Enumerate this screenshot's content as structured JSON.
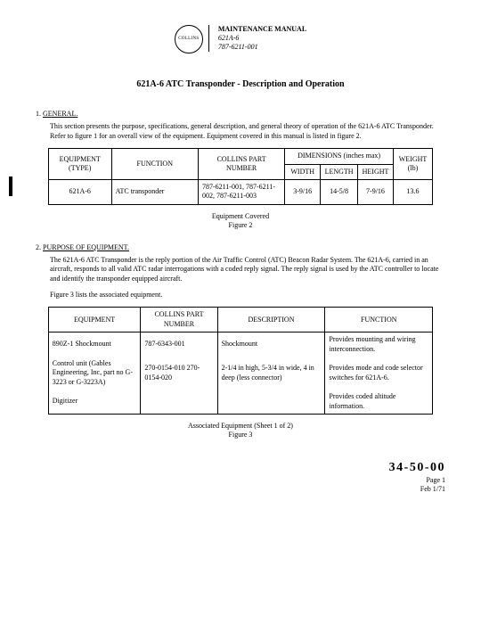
{
  "header": {
    "logo_text": "COLLINS",
    "manual": "MAINTENANCE MANUAL",
    "model": "621A-6",
    "pn": "787-6211-001"
  },
  "title": "621A-6 ATC Transponder - Description and Operation",
  "s1": {
    "num": "1.",
    "heading": "GENERAL.",
    "para": "This section presents the purpose, specifications, general description, and general theory of operation of the 621A-6 ATC Transponder. Refer to figure 1 for an overall view of the equipment. Equipment covered in this manual is listed in figure 2."
  },
  "t1": {
    "h_eqtype": "EQUIPMENT (TYPE)",
    "h_func": "FUNCTION",
    "h_partno": "COLLINS PART NUMBER",
    "h_dims": "DIMENSIONS (inches max)",
    "h_width": "WIDTH",
    "h_length": "LENGTH",
    "h_height": "HEIGHT",
    "h_weight": "WEIGHT (lb)",
    "r1_eqtype": "621A-6",
    "r1_func": "ATC transponder",
    "r1_partno": "787-6211-001, 787-6211-002, 787-6211-003",
    "r1_width": "3-9/16",
    "r1_length": "14-5/8",
    "r1_height": "7-9/16",
    "r1_weight": "13.6"
  },
  "fig2": {
    "cap1": "Equipment Covered",
    "cap2": "Figure 2"
  },
  "s2": {
    "num": "2.",
    "heading": "PURPOSE OF EQUIPMENT.",
    "para1": "The 621A-6 ATC Transponder is the reply portion of the Air Traffic Control (ATC) Beacon Radar System. The 621A-6, carried in an aircraft, responds to all valid ATC radar interrogations with a coded reply signal. The reply signal is used by the ATC controller to locate and identify the transponder equipped aircraft.",
    "para2": "Figure 3 lists the associated equipment."
  },
  "t2": {
    "h_eq": "EQUIPMENT",
    "h_pn": "COLLINS PART NUMBER",
    "h_desc": "DESCRIPTION",
    "h_func": "FUNCTION",
    "r1_eq": "890Z-1 Shockmount",
    "r1_pn": "787-6343-001",
    "r1_desc": "Shockmount",
    "r1_func": "Provides mounting and wiring interconnection.",
    "r2_eq": "Control unit (Gables Engineering, Inc, part no G-3223 or G-3223A)",
    "r2_pn": "270-0154-010 270-0154-020",
    "r2_desc": "2-1/4 in high, 5-3/4 in wide, 4 in deep (less connector)",
    "r2_func": "Provides mode and code selector switches for 621A-6.",
    "r3_eq": "Digitizer",
    "r3_pn": "",
    "r3_desc": "",
    "r3_func": "Provides coded altitude information."
  },
  "fig3": {
    "cap1": "Associated Equipment (Sheet 1 of 2)",
    "cap2": "Figure 3"
  },
  "footer": {
    "section": "34-50-00",
    "page": "Page 1",
    "date": "Feb 1/71"
  }
}
